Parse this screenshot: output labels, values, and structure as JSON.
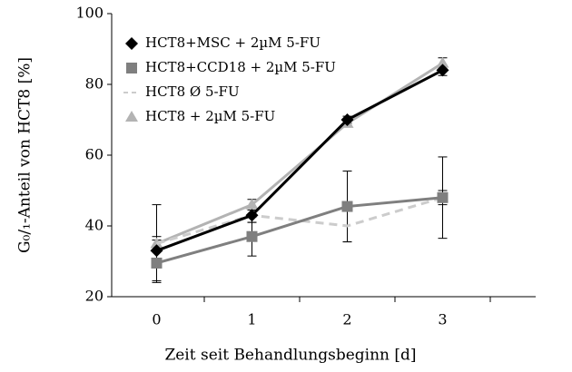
{
  "chart_data": {
    "type": "line",
    "x_label": "Zeit seit Behandlungsbeginn [d]",
    "y_label": "G₀/₁-Anteil von HCT8 [%]",
    "categories": [
      "0",
      "1",
      "2",
      "3"
    ],
    "ylim": [
      20,
      100
    ],
    "yticks": [
      20,
      40,
      60,
      80,
      100
    ],
    "legend": "upper left",
    "series": [
      {
        "name": "HCT8 + 2µM 5-FU",
        "color": "#b3b3b3",
        "marker": "triangle",
        "dash": false,
        "values": [
          35,
          46,
          69,
          86
        ],
        "errors": [
          11,
          1.5,
          1,
          1.5
        ]
      },
      {
        "name": "HCT8 Ø 5-FU",
        "color": "#cccccc",
        "marker": "none",
        "dash": true,
        "values": [
          35,
          43,
          40,
          48
        ],
        "errors": [
          2,
          2,
          4.5,
          2
        ]
      },
      {
        "name": "HCT8+CCD18 + 2µM 5-FU",
        "color": "#7f7f7f",
        "marker": "square",
        "dash": false,
        "values": [
          29.5,
          37,
          45.5,
          48
        ],
        "errors": [
          5,
          5.5,
          10,
          11.5
        ]
      },
      {
        "name": "HCT8+MSC + 2µM 5-FU",
        "color": "#000000",
        "marker": "diamond",
        "dash": false,
        "values": [
          33,
          43,
          70,
          84
        ],
        "errors": [
          3,
          2,
          1,
          1.5
        ]
      }
    ]
  }
}
